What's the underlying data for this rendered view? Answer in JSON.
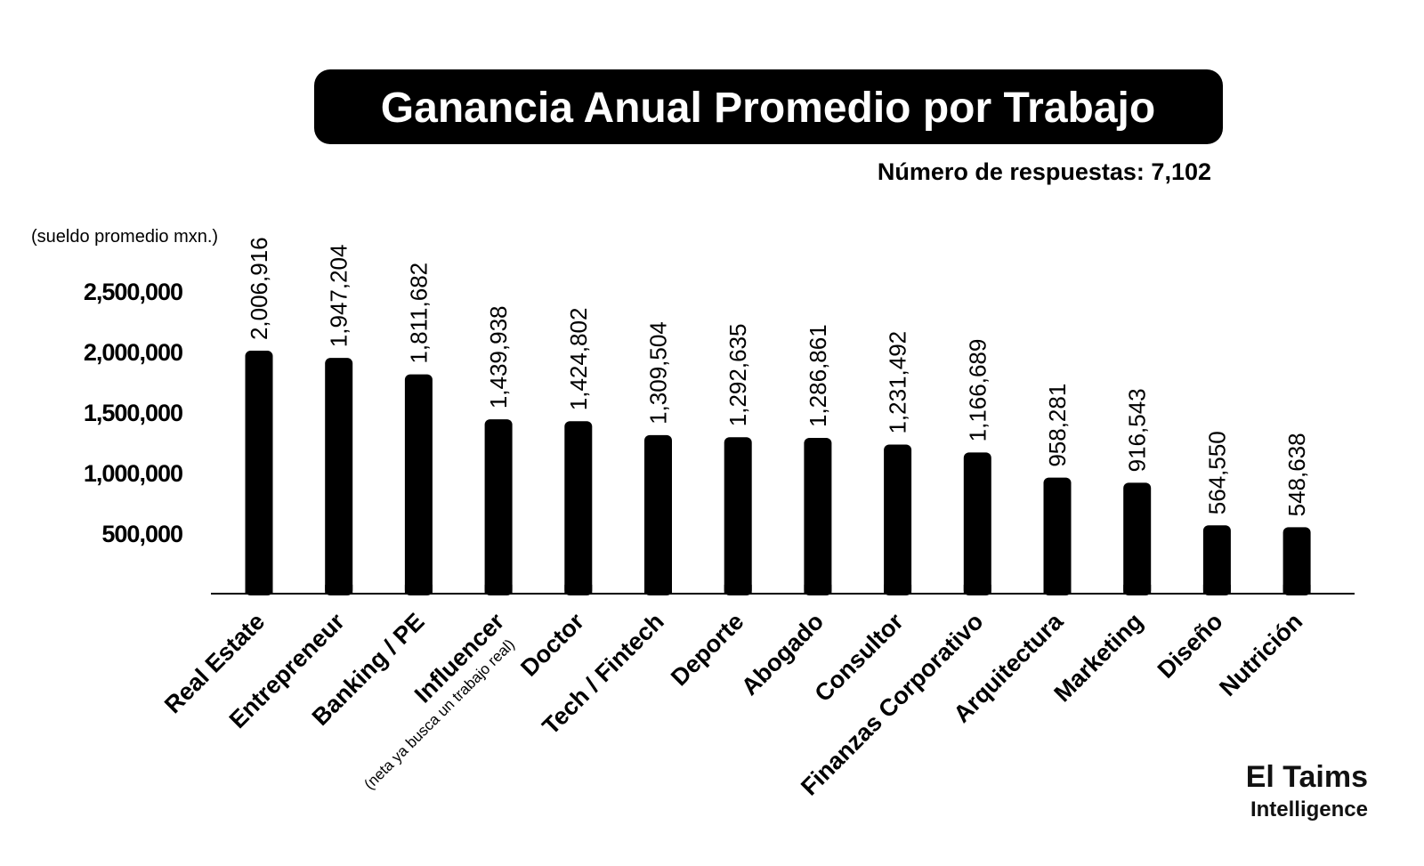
{
  "header": {
    "title": "Ganancia Anual Promedio por Trabajo",
    "subtitle": "Número de respuestas: 7,102"
  },
  "brand": {
    "name": "El Taims",
    "tagline": "Intelligence"
  },
  "colors": {
    "bar": "#000000",
    "title_bg": "#000000",
    "title_text": "#ffffff",
    "background": "#ffffff"
  },
  "chart_data": {
    "type": "bar",
    "title": "Ganancia Anual Promedio por Trabajo",
    "subtitle": "Número de respuestas: 7,102",
    "ylabel": "(sueldo promedio mxn.)",
    "xlabel": "",
    "ylim": [
      0,
      2500000
    ],
    "yticks": [
      500000,
      1000000,
      1500000,
      2000000,
      2500000
    ],
    "ytick_labels": [
      "500,000",
      "1,000,000",
      "1,500,000",
      "2,000,000",
      "2,500,000"
    ],
    "grid": false,
    "categories": [
      "Real Estate",
      "Entrepreneur",
      "Banking / PE",
      "Influencer",
      "Doctor",
      "Tech / Fintech",
      "Deporte",
      "Abogado",
      "Consultor",
      "Finanzas Corporativo",
      "Arquitectura",
      "Marketing",
      "Diseño",
      "Nutrición"
    ],
    "values": [
      2006916,
      1947204,
      1811682,
      1439938,
      1424802,
      1309504,
      1292635,
      1286861,
      1231492,
      1166689,
      958281,
      916543,
      564550,
      548638
    ],
    "value_labels": [
      "2,006,916",
      "1,947,204",
      "1,811,682",
      "1,439,938",
      "1,424,802",
      "1,309,504",
      "1,292,635",
      "1,286,861",
      "1,231,492",
      "1,166,689",
      "958,281",
      "916,543",
      "564,550",
      "548,638"
    ],
    "annotations": [
      {
        "category": "Influencer",
        "text": "(neta ya busca un trabajo real)"
      }
    ]
  }
}
